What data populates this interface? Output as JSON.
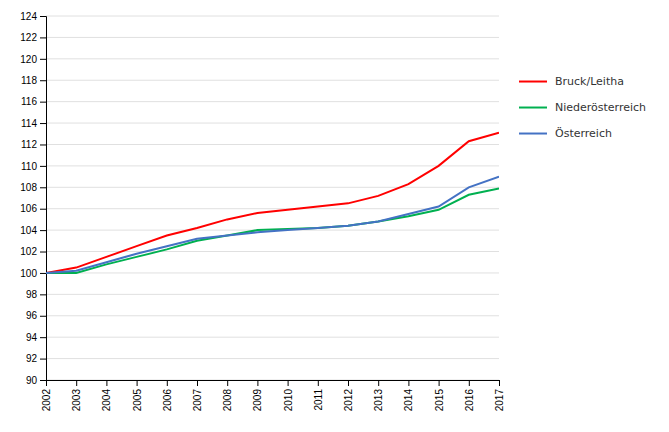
{
  "chart_data": {
    "type": "line",
    "x": [
      2002,
      2003,
      2004,
      2005,
      2006,
      2007,
      2008,
      2009,
      2010,
      2011,
      2012,
      2013,
      2014,
      2015,
      2016,
      2017
    ],
    "series": [
      {
        "name": "Bruck/Leitha",
        "color": "#ff0000",
        "values": [
          100.0,
          100.5,
          101.5,
          102.5,
          103.5,
          104.2,
          105.0,
          105.6,
          105.9,
          106.2,
          106.5,
          107.2,
          108.3,
          110.0,
          112.3,
          113.1
        ]
      },
      {
        "name": "Niederösterreich",
        "color": "#00b050",
        "values": [
          100.0,
          100.0,
          100.8,
          101.5,
          102.2,
          103.0,
          103.5,
          104.0,
          104.1,
          104.2,
          104.4,
          104.8,
          105.3,
          105.9,
          107.3,
          107.9
        ]
      },
      {
        "name": "Österreich",
        "color": "#4472c4",
        "values": [
          100.0,
          100.2,
          101.0,
          101.8,
          102.5,
          103.2,
          103.5,
          103.8,
          104.0,
          104.2,
          104.4,
          104.8,
          105.5,
          106.2,
          108.0,
          109.0
        ]
      }
    ],
    "xlim": [
      2002,
      2017
    ],
    "xticks": [
      2002,
      2003,
      2004,
      2005,
      2006,
      2007,
      2008,
      2009,
      2010,
      2011,
      2012,
      2013,
      2014,
      2015,
      2016,
      2017
    ],
    "ylim": [
      90,
      124
    ],
    "yticks": [
      90,
      92,
      94,
      96,
      98,
      100,
      102,
      104,
      106,
      108,
      110,
      112,
      114,
      116,
      118,
      120,
      122,
      124
    ],
    "grid": true,
    "legend": "right"
  }
}
